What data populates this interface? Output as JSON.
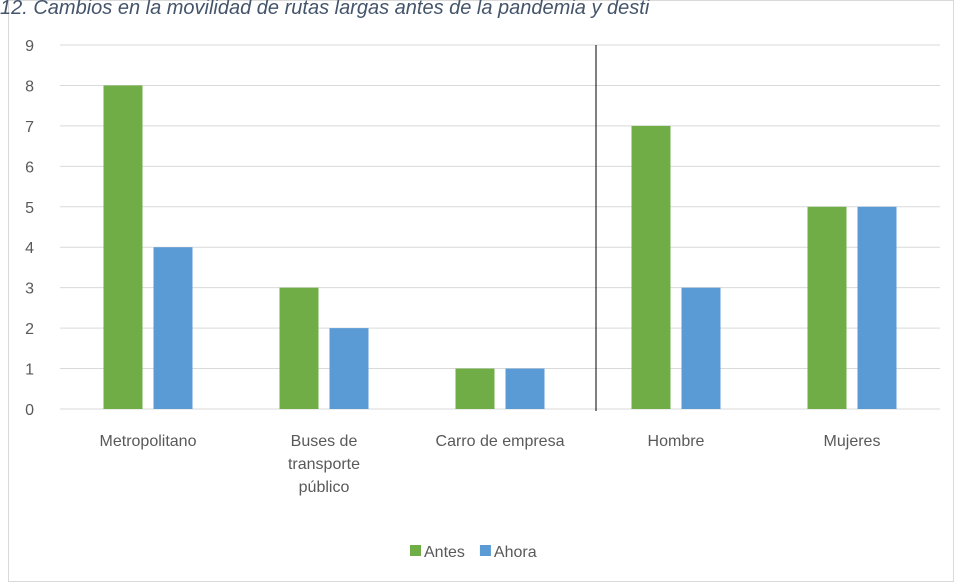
{
  "chart_data": {
    "type": "bar",
    "title": "12. Cambios en la movilidad de rutas largas antes de la pandemia y desti",
    "categories": [
      "Metropolitano",
      "Buses de transporte público",
      "Carro de empresa",
      "Hombre",
      "Mujeres"
    ],
    "series": [
      {
        "name": "Antes",
        "color": "#70ad47",
        "values": [
          8,
          3,
          1,
          7,
          5
        ]
      },
      {
        "name": "Ahora",
        "color": "#5b9bd5",
        "values": [
          4,
          2,
          1,
          3,
          5
        ]
      }
    ],
    "ylim": [
      0,
      9
    ],
    "yticks": [
      0,
      1,
      2,
      3,
      4,
      5,
      6,
      7,
      8,
      9
    ],
    "grid": true,
    "legend": "bottom"
  }
}
